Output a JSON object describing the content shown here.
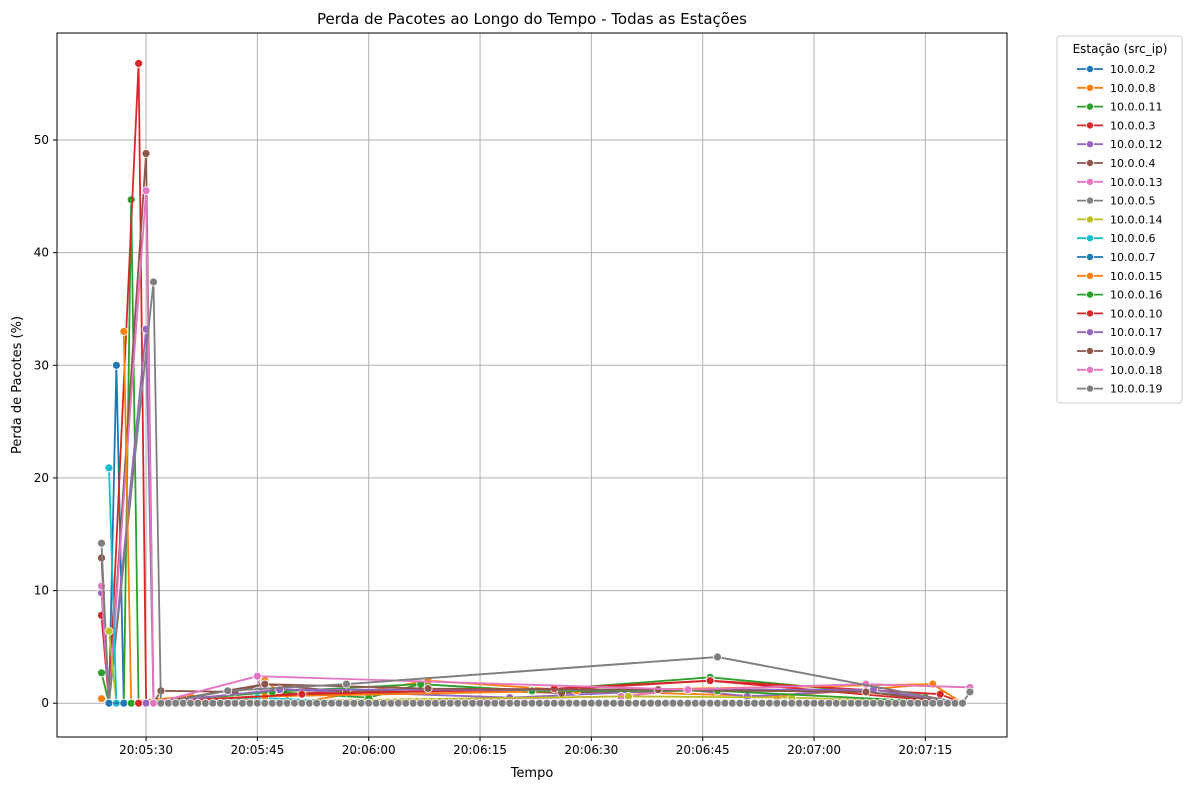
{
  "chart_data": {
    "type": "line",
    "title": "Perda de Pacotes ao Longo do Tempo - Todas as Estações",
    "xlabel": "Tempo",
    "ylabel": "Perda de Pacotes (%)",
    "x_unit": "time of day",
    "xlim": [
      "20:05:18",
      "20:07:26"
    ],
    "ylim": [
      -3,
      59.5
    ],
    "x_ticks": [
      "20:05:30",
      "20:05:45",
      "20:06:00",
      "20:06:15",
      "20:06:30",
      "20:06:45",
      "20:07:00",
      "20:07:15"
    ],
    "y_ticks": [
      0,
      10,
      20,
      30,
      40,
      50
    ],
    "grid": true,
    "legend_title": "Estação (src_ip)",
    "legend_position": "outside right",
    "series": [
      {
        "name": "10.0.0.2",
        "color": "#1f77b4",
        "points": [
          [
            "20:05:25",
            0
          ],
          [
            "20:05:26",
            30
          ],
          [
            "20:05:27",
            0
          ],
          [
            "20:05:28",
            0
          ],
          [
            "20:05:29",
            0
          ],
          [
            "20:05:30",
            0
          ],
          [
            "20:05:45",
            0
          ],
          [
            "20:05:48",
            0
          ],
          [
            "20:06:00",
            0
          ],
          [
            "20:06:45",
            0
          ]
        ]
      },
      {
        "name": "10.0.0.8",
        "color": "#ff7f0e",
        "points": [
          [
            "20:05:24",
            0.4
          ],
          [
            "20:05:25",
            0
          ],
          [
            "20:05:36",
            0.6
          ],
          [
            "20:05:45",
            0.3
          ],
          [
            "20:05:46",
            2
          ],
          [
            "20:05:50",
            0
          ],
          [
            "20:06:08",
            2
          ],
          [
            "20:06:28",
            1.1
          ],
          [
            "20:06:55",
            0.6
          ],
          [
            "20:07:16",
            1.7
          ],
          [
            "20:07:20",
            0
          ]
        ]
      },
      {
        "name": "10.0.0.11",
        "color": "#2ca02c",
        "points": [
          [
            "20:05:24",
            2.7
          ],
          [
            "20:05:25",
            0
          ],
          [
            "20:05:26",
            0
          ],
          [
            "20:05:27",
            0
          ],
          [
            "20:05:28",
            44.7
          ],
          [
            "20:05:29",
            0
          ],
          [
            "20:05:30",
            0
          ],
          [
            "20:05:47",
            1
          ],
          [
            "20:06:00",
            0.5
          ],
          [
            "20:06:07",
            1.7
          ],
          [
            "20:06:22",
            1.1
          ],
          [
            "20:06:46",
            2.3
          ],
          [
            "20:07:15",
            0.5
          ],
          [
            "20:07:20",
            0
          ]
        ]
      },
      {
        "name": "10.0.0.3",
        "color": "#d62728",
        "points": [
          [
            "20:05:24",
            7.8
          ],
          [
            "20:05:25",
            0
          ],
          [
            "20:05:29",
            56.8
          ],
          [
            "20:05:30",
            0
          ],
          [
            "20:05:31",
            0
          ],
          [
            "20:05:51",
            0.9
          ],
          [
            "20:06:25",
            1.2
          ],
          [
            "20:06:46",
            2
          ],
          [
            "20:07:17",
            0.8
          ],
          [
            "20:07:20",
            0
          ]
        ]
      },
      {
        "name": "10.0.0.12",
        "color": "#9467bd",
        "points": [
          [
            "20:05:24",
            9.8
          ],
          [
            "20:05:25",
            0
          ],
          [
            "20:05:30",
            33.2
          ],
          [
            "20:05:31",
            0
          ],
          [
            "20:05:48",
            1.2
          ],
          [
            "20:06:19",
            0.5
          ],
          [
            "20:06:43",
            1.2
          ],
          [
            "20:06:51",
            0.6
          ],
          [
            "20:07:08",
            1.2
          ],
          [
            "20:07:20",
            0
          ]
        ]
      },
      {
        "name": "10.0.0.4",
        "color": "#8c564b",
        "points": [
          [
            "20:05:24",
            12.9
          ],
          [
            "20:05:25",
            0
          ],
          [
            "20:05:30",
            48.8
          ],
          [
            "20:05:31",
            0
          ],
          [
            "20:05:32",
            1.1
          ],
          [
            "20:05:42",
            1
          ],
          [
            "20:05:46",
            1.7
          ],
          [
            "20:05:57",
            1
          ],
          [
            "20:06:08",
            1.3
          ],
          [
            "20:06:26",
            0.9
          ],
          [
            "20:06:39",
            1.2
          ],
          [
            "20:07:07",
            1
          ],
          [
            "20:07:20",
            0
          ]
        ]
      },
      {
        "name": "10.0.0.13",
        "color": "#e377c2",
        "points": [
          [
            "20:05:24",
            10.4
          ],
          [
            "20:05:25",
            0
          ],
          [
            "20:05:30",
            45.5
          ],
          [
            "20:05:31",
            0
          ],
          [
            "20:05:45",
            2.4
          ],
          [
            "20:05:46",
            0
          ],
          [
            "20:06:34",
            0.6
          ],
          [
            "20:06:43",
            1.2
          ],
          [
            "20:07:07",
            1.7
          ],
          [
            "20:07:21",
            1.4
          ]
        ]
      },
      {
        "name": "10.0.0.5",
        "color": "#7f7f7f",
        "points": [
          [
            "20:05:24",
            14.2
          ],
          [
            "20:05:25",
            0
          ],
          [
            "20:05:31",
            37.4
          ],
          [
            "20:05:32",
            0
          ],
          [
            "20:05:41",
            1.1
          ],
          [
            "20:05:57",
            1.7
          ],
          [
            "20:06:47",
            4.1
          ],
          [
            "20:07:20",
            0
          ]
        ]
      },
      {
        "name": "10.0.0.14",
        "color": "#bcbd22",
        "points": [
          [
            "20:05:25",
            6.4
          ],
          [
            "20:05:26",
            0
          ],
          [
            "20:06:35",
            0.6
          ],
          [
            "20:06:57",
            0.5
          ],
          [
            "20:07:20",
            0
          ]
        ]
      },
      {
        "name": "10.0.0.6",
        "color": "#17becf",
        "points": [
          [
            "20:05:25",
            20.9
          ],
          [
            "20:05:26",
            0
          ],
          [
            "20:05:45",
            0.5
          ],
          [
            "20:06:00",
            0
          ],
          [
            "20:07:20",
            0
          ]
        ]
      },
      {
        "name": "10.0.0.7",
        "color": "#1f77b4",
        "points": [
          [
            "20:05:25",
            0
          ],
          [
            "20:05:27",
            0
          ],
          [
            "20:05:45",
            0
          ],
          [
            "20:06:30",
            0
          ],
          [
            "20:07:20",
            0
          ]
        ]
      },
      {
        "name": "10.0.0.15",
        "color": "#ff7f0e",
        "points": [
          [
            "20:05:27",
            33
          ],
          [
            "20:05:28",
            0
          ],
          [
            "20:05:46",
            0.6
          ],
          [
            "20:06:28",
            1.1
          ],
          [
            "20:07:16",
            1.7
          ],
          [
            "20:07:20",
            0
          ]
        ]
      },
      {
        "name": "10.0.0.16",
        "color": "#2ca02c",
        "points": [
          [
            "20:05:28",
            0
          ],
          [
            "20:05:47",
            1
          ],
          [
            "20:06:07",
            1.7
          ],
          [
            "20:06:22",
            1.1
          ],
          [
            "20:06:47",
            1.1
          ],
          [
            "20:07:20",
            0
          ]
        ]
      },
      {
        "name": "10.0.0.10",
        "color": "#d62728",
        "points": [
          [
            "20:05:29",
            0
          ],
          [
            "20:05:51",
            0.8
          ],
          [
            "20:06:25",
            1.3
          ],
          [
            "20:06:46",
            2
          ],
          [
            "20:07:20",
            0
          ]
        ]
      },
      {
        "name": "10.0.0.17",
        "color": "#9467bd",
        "points": [
          [
            "20:05:30",
            0
          ],
          [
            "20:05:48",
            1.2
          ],
          [
            "20:06:43",
            1.2
          ],
          [
            "20:07:08",
            1.2
          ],
          [
            "20:07:20",
            0
          ]
        ]
      },
      {
        "name": "10.0.0.9",
        "color": "#8c564b",
        "points": [
          [
            "20:05:31",
            0
          ],
          [
            "20:05:46",
            1.7
          ],
          [
            "20:06:08",
            1.3
          ],
          [
            "20:06:39",
            1.2
          ],
          [
            "20:07:07",
            1
          ],
          [
            "20:07:20",
            0
          ]
        ]
      },
      {
        "name": "10.0.0.18",
        "color": "#e377c2",
        "points": [
          [
            "20:05:31",
            0
          ],
          [
            "20:05:45",
            2.4
          ],
          [
            "20:06:43",
            1.2
          ],
          [
            "20:07:07",
            1.7
          ],
          [
            "20:07:21",
            1.4
          ]
        ]
      },
      {
        "name": "10.0.0.19",
        "color": "#7f7f7f",
        "points": [
          [
            "20:05:32",
            0
          ],
          [
            "20:05:41",
            1.1
          ],
          [
            "20:05:57",
            1.7
          ],
          [
            "20:06:47",
            4.1
          ],
          [
            "20:07:20",
            0
          ],
          [
            "20:07:21",
            1
          ]
        ]
      }
    ]
  }
}
